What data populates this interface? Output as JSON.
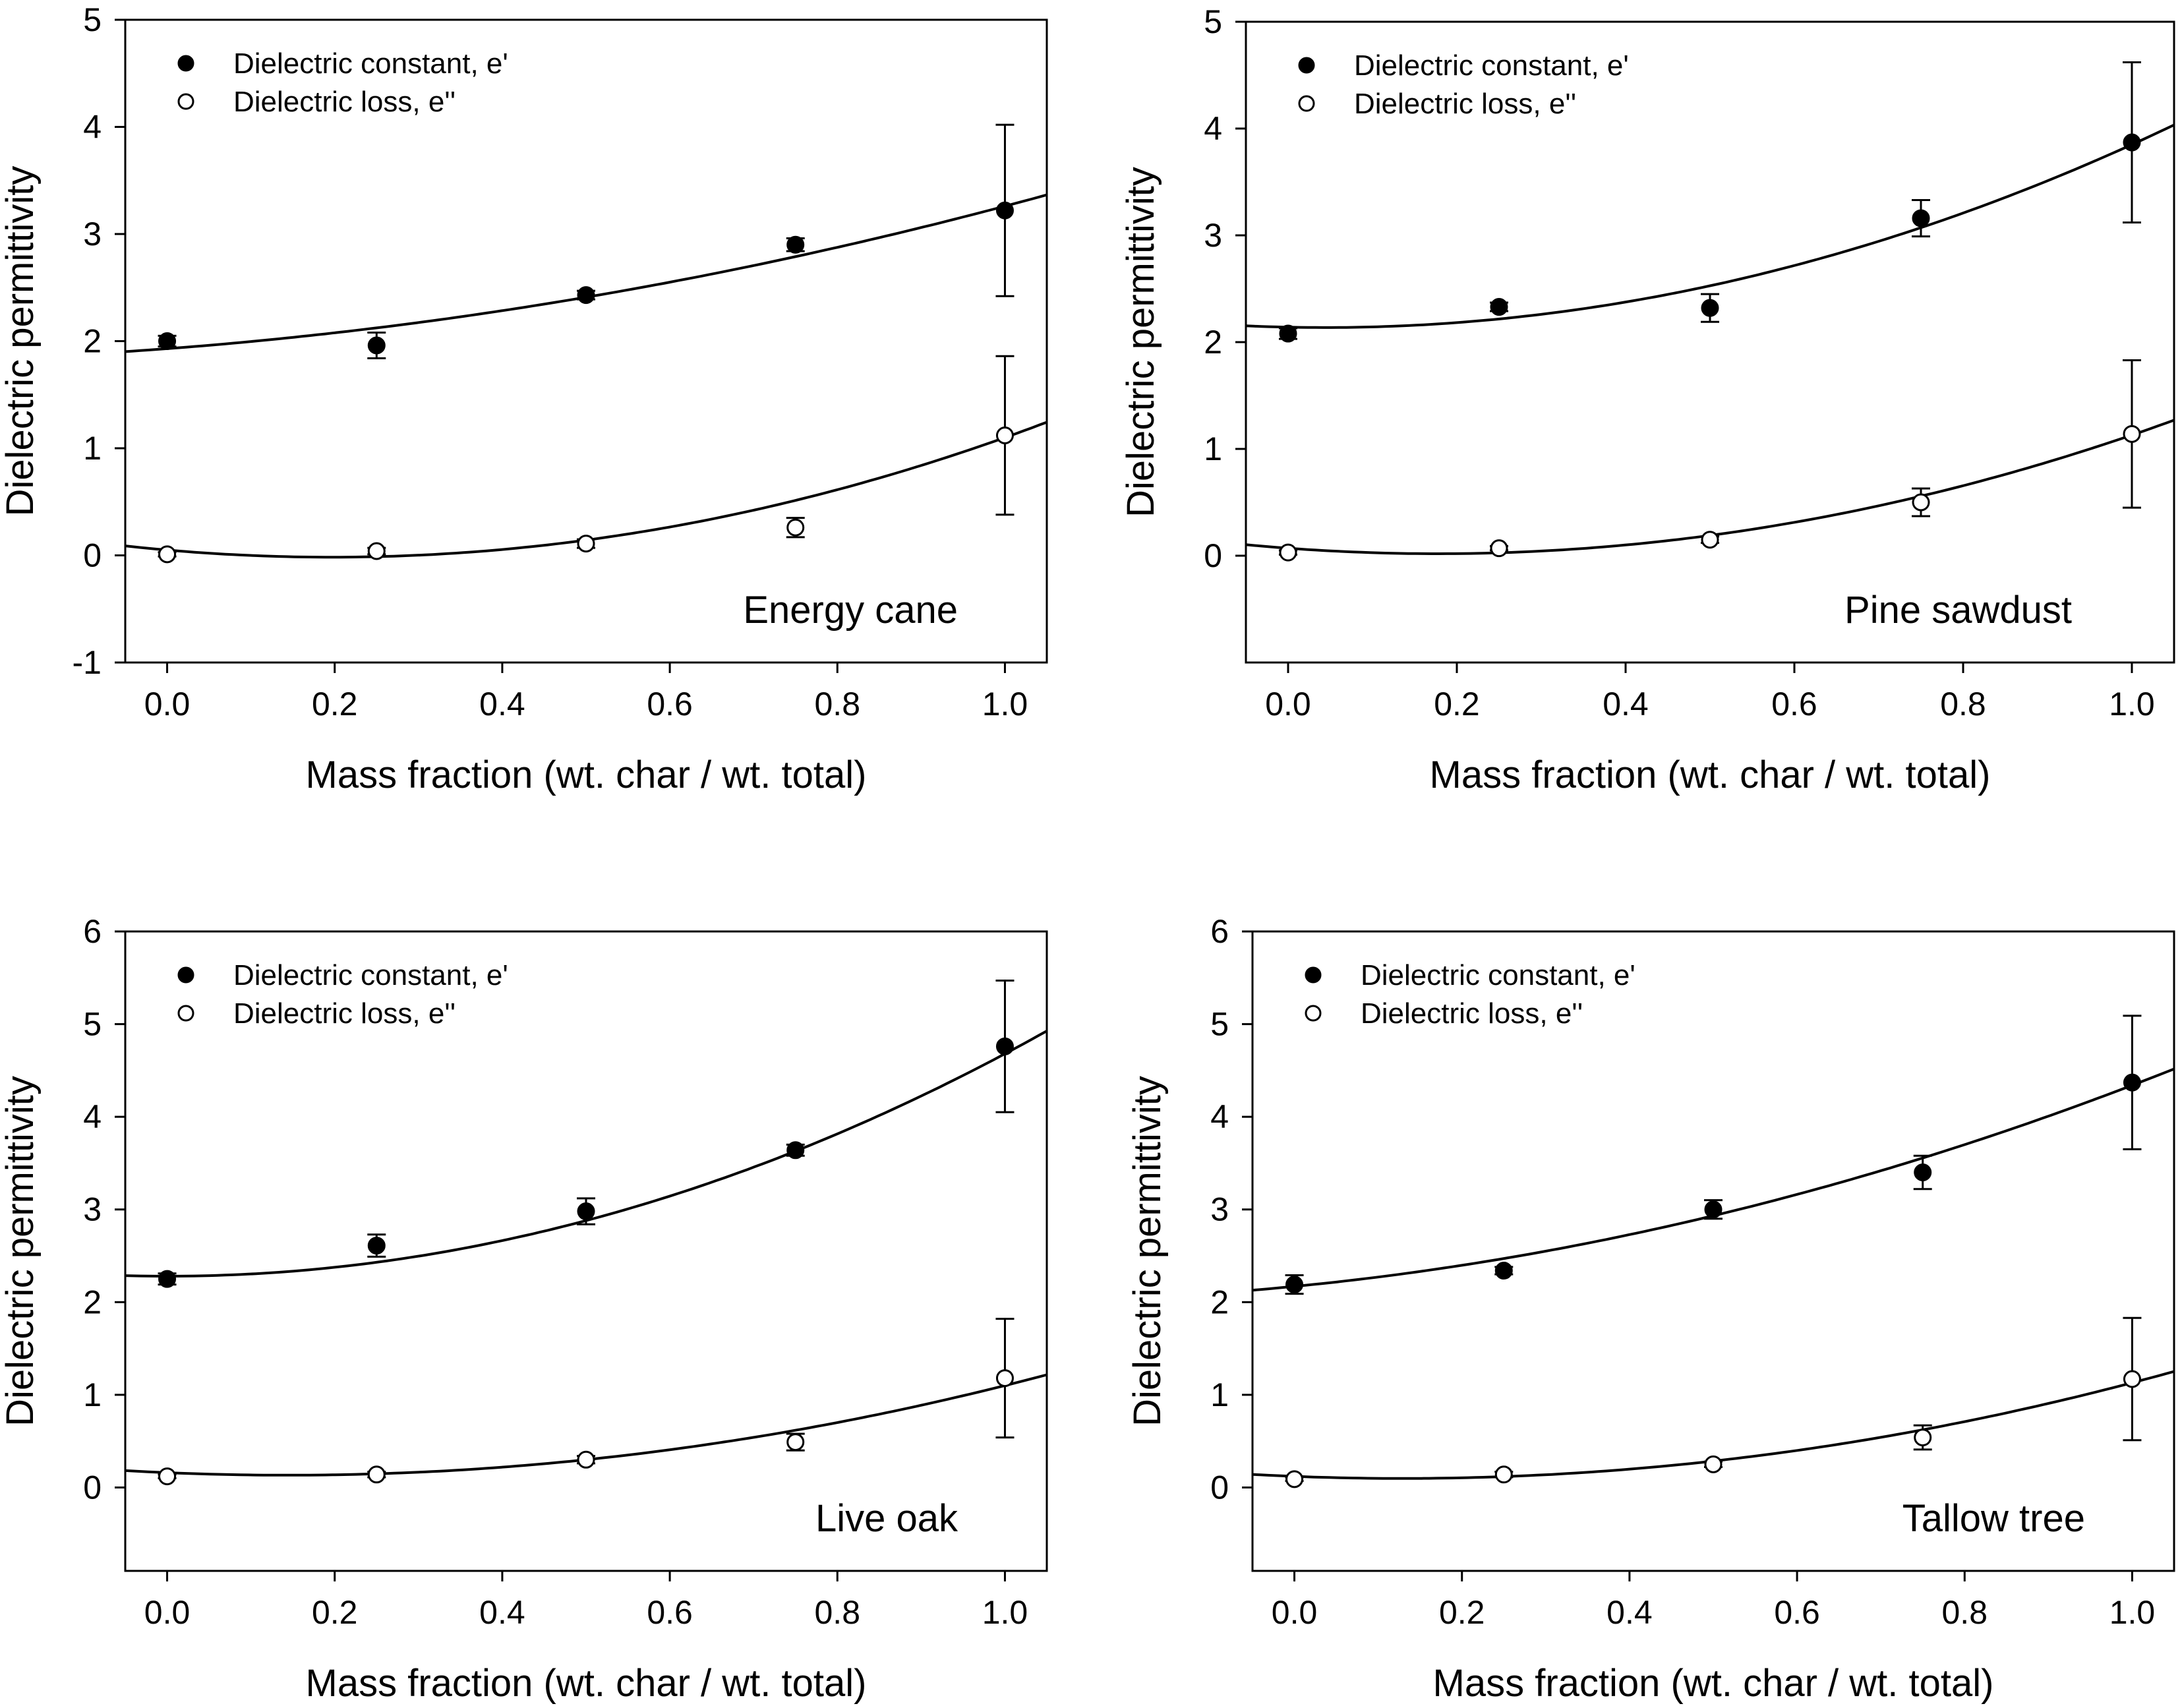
{
  "chart_data": [
    {
      "type": "scatter",
      "panel_label": "Energy cane",
      "xlabel": "Mass fraction (wt. char / wt. total)",
      "ylabel": "Dielectric permittivity",
      "xlim": [
        -0.05,
        1.05
      ],
      "ylim": [
        -1,
        5
      ],
      "xticks": [
        "0.0",
        "0.2",
        "0.4",
        "0.6",
        "0.8",
        "1.0"
      ],
      "yticks": [
        "-1",
        "0",
        "1",
        "2",
        "3",
        "4",
        "5"
      ],
      "legend": {
        "position": "top-left",
        "entries": [
          "Dielectric constant, e'",
          "Dielectric loss, e''"
        ]
      },
      "series": [
        {
          "name": "Dielectric constant, e'",
          "marker": "filled-circle",
          "x": [
            0,
            0.25,
            0.5,
            0.75,
            1.0
          ],
          "y": [
            2.0,
            1.96,
            2.43,
            2.9,
            3.22
          ],
          "err": [
            0.05,
            0.12,
            0.04,
            0.06,
            0.8
          ],
          "fit": [
            1.93,
            0.59,
            0.74
          ]
        },
        {
          "name": "Dielectric loss, e''",
          "marker": "open-circle",
          "x": [
            0,
            0.25,
            0.5,
            0.75,
            1.0
          ],
          "y": [
            0.01,
            0.04,
            0.11,
            0.26,
            1.12
          ],
          "err": [
            0.02,
            0.03,
            0.04,
            0.09,
            0.74
          ],
          "fit": [
            0.05,
            -0.68,
            1.73
          ]
        }
      ]
    },
    {
      "type": "scatter",
      "panel_label": "Pine sawdust",
      "xlabel": "Mass fraction (wt. char / wt. total)",
      "ylabel": "Dielectric permittivity",
      "xlim": [
        -0.05,
        1.05
      ],
      "ylim": [
        -1,
        5
      ],
      "xticks": [
        "0.0",
        "0.2",
        "0.4",
        "0.6",
        "0.8",
        "1.0"
      ],
      "yticks": [
        "0",
        "1",
        "2",
        "3",
        "4",
        "5"
      ],
      "legend": {
        "position": "top-left",
        "entries": [
          "Dielectric constant, e'",
          "Dielectric loss, e''"
        ]
      },
      "series": [
        {
          "name": "Dielectric constant, e'",
          "marker": "filled-circle",
          "x": [
            0,
            0.25,
            0.5,
            0.75,
            1.0
          ],
          "y": [
            2.08,
            2.33,
            2.32,
            3.16,
            3.87
          ],
          "err": [
            0.05,
            0.04,
            0.13,
            0.17,
            0.75
          ],
          "fit": [
            2.14,
            -0.16,
            1.87
          ]
        },
        {
          "name": "Dielectric loss, e''",
          "marker": "open-circle",
          "x": [
            0,
            0.25,
            0.5,
            0.75,
            1.0
          ],
          "y": [
            0.03,
            0.07,
            0.15,
            0.5,
            1.14
          ],
          "err": [
            0.02,
            0.02,
            0.03,
            0.13,
            0.69
          ],
          "fit": [
            0.07,
            -0.58,
            1.64
          ]
        }
      ]
    },
    {
      "type": "scatter",
      "panel_label": "Live oak",
      "xlabel": "Mass fraction (wt. char / wt. total)",
      "ylabel": "Dielectric permittivity",
      "xlim": [
        -0.05,
        1.05
      ],
      "ylim": [
        -0.9,
        6
      ],
      "xticks": [
        "0.0",
        "0.2",
        "0.4",
        "0.6",
        "0.8",
        "1.0"
      ],
      "yticks": [
        "0",
        "1",
        "2",
        "3",
        "4",
        "5",
        "6"
      ],
      "legend": {
        "position": "top-left",
        "entries": [
          "Dielectric constant, e'",
          "Dielectric loss, e''"
        ]
      },
      "series": [
        {
          "name": "Dielectric constant, e'",
          "marker": "filled-circle",
          "x": [
            0,
            0.25,
            0.5,
            0.75,
            1.0
          ],
          "y": [
            2.25,
            2.61,
            2.98,
            3.64,
            4.76
          ],
          "err": [
            0.06,
            0.12,
            0.14,
            0.06,
            0.71
          ],
          "fit": [
            2.28,
            0.0,
            2.4
          ]
        },
        {
          "name": "Dielectric loss, e''",
          "marker": "open-circle",
          "x": [
            0,
            0.25,
            0.5,
            0.75,
            1.0
          ],
          "y": [
            0.12,
            0.14,
            0.3,
            0.49,
            1.18
          ],
          "err": [
            0.02,
            0.03,
            0.04,
            0.09,
            0.64
          ],
          "fit": [
            0.16,
            -0.38,
            1.32
          ]
        }
      ]
    },
    {
      "type": "scatter",
      "panel_label": "Tallow tree",
      "xlabel": "Mass fraction (wt. char / wt. total)",
      "ylabel": "Dielectric permittivity",
      "xlim": [
        -0.05,
        1.05
      ],
      "ylim": [
        -0.9,
        6
      ],
      "xticks": [
        "0.0",
        "0.2",
        "0.4",
        "0.6",
        "0.8",
        "1.0"
      ],
      "yticks": [
        "0",
        "1",
        "2",
        "3",
        "4",
        "5",
        "6"
      ],
      "legend": {
        "position": "top-left",
        "entries": [
          "Dielectric constant, e'",
          "Dielectric loss, e''"
        ]
      },
      "series": [
        {
          "name": "Dielectric constant, e'",
          "marker": "filled-circle",
          "x": [
            0,
            0.25,
            0.5,
            0.75,
            1.0
          ],
          "y": [
            2.19,
            2.34,
            3.0,
            3.4,
            4.37
          ],
          "err": [
            0.1,
            0.04,
            0.1,
            0.18,
            0.72
          ],
          "fit": [
            2.17,
            0.88,
            1.29
          ]
        },
        {
          "name": "Dielectric loss, e''",
          "marker": "open-circle",
          "x": [
            0,
            0.25,
            0.5,
            0.75,
            1.0
          ],
          "y": [
            0.09,
            0.14,
            0.25,
            0.54,
            1.17
          ],
          "err": [
            0.02,
            0.03,
            0.03,
            0.13,
            0.66
          ],
          "fit": [
            0.12,
            -0.35,
            1.36
          ]
        }
      ]
    }
  ]
}
